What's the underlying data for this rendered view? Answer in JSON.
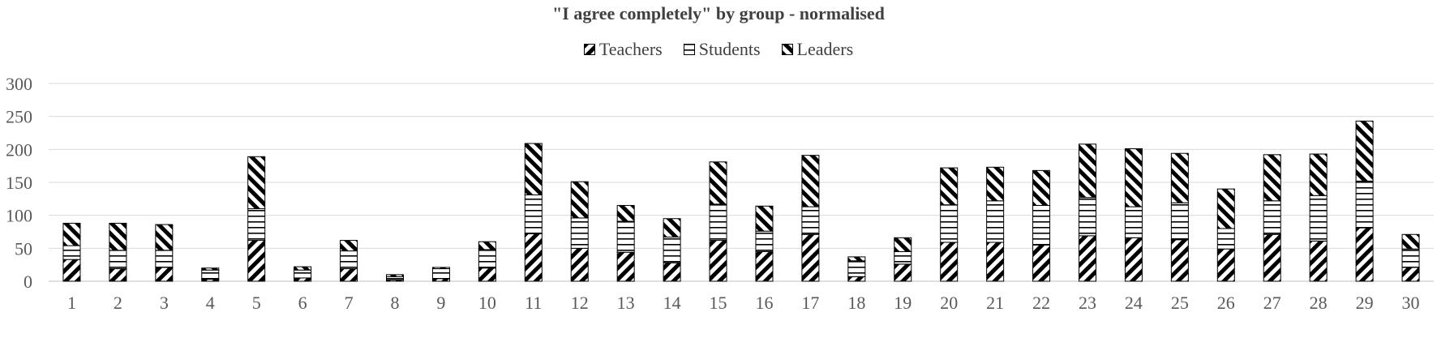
{
  "chart_data": {
    "type": "bar",
    "stacked": true,
    "title": "\"I agree completely\" by group - normalised",
    "xlabel": "",
    "ylabel": "",
    "ylim": [
      0,
      300
    ],
    "yticks": [
      0,
      50,
      100,
      150,
      200,
      250,
      300
    ],
    "grid": true,
    "legend_position": "top",
    "categories": [
      "1",
      "2",
      "3",
      "4",
      "5",
      "6",
      "7",
      "8",
      "9",
      "10",
      "11",
      "12",
      "13",
      "14",
      "15",
      "16",
      "17",
      "18",
      "19",
      "20",
      "21",
      "22",
      "23",
      "24",
      "25",
      "26",
      "27",
      "28",
      "29",
      "30"
    ],
    "series": [
      {
        "name": "Teachers",
        "pattern": "hatch-forward",
        "values": [
          33,
          19,
          21,
          3,
          62,
          5,
          19,
          2,
          4,
          20,
          72,
          50,
          44,
          28,
          62,
          45,
          71,
          7,
          26,
          59,
          59,
          55,
          69,
          66,
          63,
          49,
          71,
          61,
          81,
          21
        ]
      },
      {
        "name": "Students",
        "pattern": "horizontal-lines",
        "values": [
          21,
          28,
          26,
          14,
          48,
          12,
          27,
          5,
          15,
          28,
          59,
          46,
          47,
          39,
          55,
          31,
          42,
          24,
          19,
          57,
          63,
          60,
          58,
          47,
          56,
          31,
          51,
          69,
          71,
          28
        ]
      },
      {
        "name": "Leaders",
        "pattern": "hatch-backward",
        "values": [
          34,
          41,
          39,
          3,
          79,
          5,
          16,
          3,
          2,
          12,
          78,
          55,
          24,
          28,
          64,
          38,
          78,
          6,
          21,
          56,
          51,
          53,
          81,
          88,
          75,
          60,
          70,
          63,
          91,
          22
        ]
      }
    ]
  }
}
